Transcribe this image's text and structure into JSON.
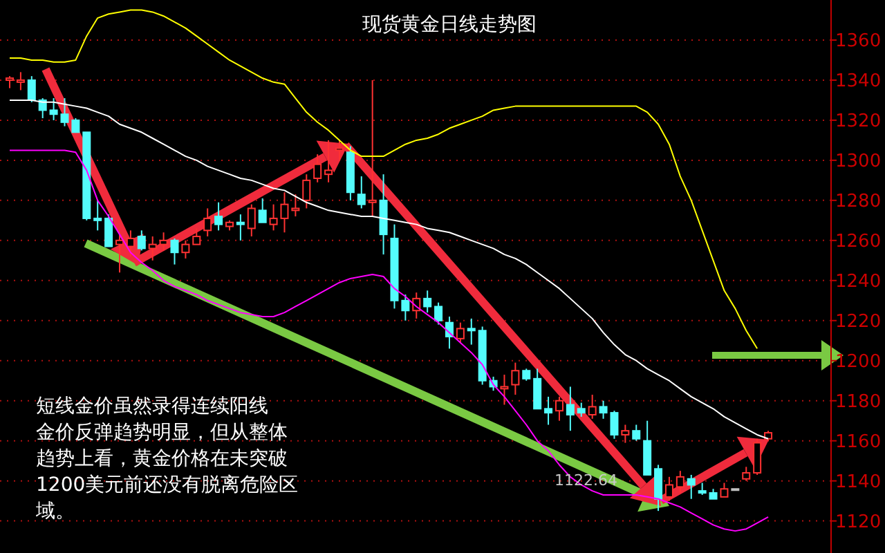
{
  "chart_data": {
    "type": "candlestick",
    "title": "现货黄金日线走势图",
    "annotations": [
      "1122.64",
      "短线金价虽然录得连续阳线",
      "金价反弹趋势明显，但从整体",
      "趋势上看，黄金价格在未突破",
      "1200美元前还没有脱离危险区",
      "域。"
    ],
    "categories": [
      null,
      null,
      null,
      null,
      null,
      null,
      null,
      null,
      null,
      null,
      null,
      null,
      null,
      null,
      null,
      null,
      null,
      null,
      null,
      null,
      null,
      null,
      null,
      null,
      null,
      null,
      null,
      null,
      null,
      null,
      null,
      null,
      null,
      null,
      null,
      null,
      null,
      null,
      null,
      null,
      null,
      null,
      null,
      null,
      null,
      null,
      null,
      null,
      null,
      null,
      null,
      null,
      null,
      null,
      null,
      null,
      null,
      null,
      null,
      null,
      null,
      null,
      null,
      null,
      null,
      null,
      null,
      null,
      null,
      null
    ],
    "ohlc": [
      [
        1340,
        1342,
        1336,
        1341
      ],
      [
        1339,
        1344,
        1335,
        1340
      ],
      [
        1340,
        1342,
        1329,
        1330
      ],
      [
        1330,
        1331,
        1321,
        1325
      ],
      [
        1325,
        1331,
        1320,
        1323
      ],
      [
        1323,
        1331,
        1317,
        1319
      ],
      [
        1320,
        1321,
        1314,
        1314
      ],
      [
        1314,
        1314,
        1270,
        1271
      ],
      [
        1271,
        1280,
        1265,
        1270
      ],
      [
        1271,
        1273,
        1257,
        1257
      ],
      [
        1258,
        1264,
        1244,
        1260
      ],
      [
        1257,
        1265,
        1252,
        1261
      ],
      [
        1262,
        1265,
        1255,
        1256
      ],
      [
        1256,
        1262,
        1250,
        1258
      ],
      [
        1258,
        1264,
        1255,
        1260
      ],
      [
        1260,
        1261,
        1248,
        1254
      ],
      [
        1254,
        1260,
        1251,
        1258
      ],
      [
        1258,
        1266,
        1258,
        1262
      ],
      [
        1265,
        1276,
        1262,
        1271
      ],
      [
        1272,
        1279,
        1265,
        1268
      ],
      [
        1267,
        1270,
        1265,
        1269
      ],
      [
        1269,
        1273,
        1260,
        1268
      ],
      [
        1266,
        1278,
        1262,
        1276
      ],
      [
        1275,
        1281,
        1269,
        1269
      ],
      [
        1268,
        1278,
        1265,
        1271
      ],
      [
        1271,
        1284,
        1264,
        1278
      ],
      [
        1275,
        1283,
        1272,
        1276
      ],
      [
        1280,
        1293,
        1276,
        1290
      ],
      [
        1291,
        1303,
        1289,
        1298
      ],
      [
        1293,
        1310,
        1289,
        1295
      ],
      [
        1305,
        1310,
        1300,
        1306
      ],
      [
        1304,
        1307,
        1280,
        1284
      ],
      [
        1283,
        1292,
        1276,
        1278
      ],
      [
        1279,
        1340,
        1272,
        1280
      ],
      [
        1280,
        1293,
        1253,
        1263
      ],
      [
        1261,
        1268,
        1226,
        1230
      ],
      [
        1230,
        1233,
        1220,
        1225
      ],
      [
        1225,
        1234,
        1221,
        1231
      ],
      [
        1231,
        1235,
        1224,
        1227
      ],
      [
        1227,
        1229,
        1218,
        1220
      ],
      [
        1219,
        1222,
        1206,
        1212
      ],
      [
        1211,
        1219,
        1209,
        1216
      ],
      [
        1216,
        1221,
        1208,
        1215
      ],
      [
        1215,
        1217,
        1188,
        1190
      ],
      [
        1190,
        1192,
        1185,
        1187
      ],
      [
        1186,
        1193,
        1178,
        1187
      ],
      [
        1188,
        1199,
        1183,
        1195
      ],
      [
        1195,
        1196,
        1190,
        1191
      ],
      [
        1191,
        1196,
        1176,
        1176
      ],
      [
        1176,
        1182,
        1168,
        1174
      ],
      [
        1175,
        1182,
        1170,
        1180
      ],
      [
        1178,
        1187,
        1165,
        1173
      ],
      [
        1176,
        1179,
        1172,
        1174
      ],
      [
        1173,
        1183,
        1171,
        1177
      ],
      [
        1177,
        1180,
        1171,
        1174
      ],
      [
        1174,
        1175,
        1161,
        1163
      ],
      [
        1163,
        1168,
        1159,
        1165
      ],
      [
        1165,
        1168,
        1160,
        1161
      ],
      [
        1160,
        1170,
        1143,
        1143
      ],
      [
        1146,
        1148,
        1125,
        1131
      ],
      [
        1132,
        1142,
        1130,
        1138
      ],
      [
        1137,
        1145,
        1134,
        1142
      ],
      [
        1141,
        1143,
        1131,
        1138
      ],
      [
        1135,
        1139,
        1133,
        1134
      ],
      [
        1134,
        1136,
        1131,
        1131
      ],
      [
        1132,
        1139,
        1132,
        1136
      ],
      [
        1136,
        1136,
        1136,
        1136
      ],
      [
        1141,
        1147,
        1140,
        1144
      ],
      [
        1144,
        1161,
        1143,
        1159
      ],
      [
        1161,
        1165,
        1160,
        1164
      ]
    ],
    "colors": [
      "#ff3232",
      "#ff3232",
      "#54fcfc",
      "#54fcfc",
      "#54fcfc",
      "#54fcfc",
      "#54fcfc",
      "#54fcfc",
      "#54fcfc",
      "#54fcfc",
      "#ff3232",
      "#ff3232",
      "#54fcfc",
      "#ff3232",
      "#ff3232",
      "#54fcfc",
      "#ff3232",
      "#ff3232",
      "#ff3232",
      "#54fcfc",
      "#ff3232",
      "#54fcfc",
      "#ff3232",
      "#54fcfc",
      "#ff3232",
      "#ff3232",
      "#ff3232",
      "#ff3232",
      "#ff3232",
      "#ff3232",
      "#ff3232",
      "#54fcfc",
      "#54fcfc",
      "#ff3232",
      "#54fcfc",
      "#54fcfc",
      "#54fcfc",
      "#ff3232",
      "#54fcfc",
      "#54fcfc",
      "#54fcfc",
      "#ff3232",
      "#54fcfc",
      "#54fcfc",
      "#54fcfc",
      "#ff3232",
      "#ff3232",
      "#54fcfc",
      "#54fcfc",
      "#54fcfc",
      "#ff3232",
      "#54fcfc",
      "#54fcfc",
      "#ff3232",
      "#54fcfc",
      "#54fcfc",
      "#ff3232",
      "#54fcfc",
      "#54fcfc",
      "#54fcfc",
      "#ff3232",
      "#ff3232",
      "#54fcfc",
      "#54fcfc",
      "#54fcfc",
      "#ff3232",
      "#c0c0c0",
      "#ff3232",
      "#ff3232",
      "#ff3232"
    ],
    "series": [
      {
        "type": "line",
        "color": "#ffff00",
        "values": [
          1351,
          1351,
          1350,
          1350,
          1349,
          1349,
          1350,
          1362,
          1371,
          1373,
          1374,
          1375,
          1375,
          1374,
          1372,
          1369,
          1366,
          1362,
          1358,
          1354,
          1350,
          1347,
          1344,
          1341,
          1339,
          1338,
          1331,
          1324,
          1319,
          1315,
          1310,
          1305,
          1302,
          1302,
          1302,
          1305,
          1308,
          1310,
          1311,
          1313,
          1316,
          1318,
          1320,
          1322,
          1325,
          1326,
          1327,
          1327,
          1327,
          1327,
          1327,
          1327,
          1327,
          1327,
          1327,
          1327,
          1327,
          1327,
          1324,
          1318,
          1308,
          1292,
          1280,
          1265,
          1250,
          1235,
          1226,
          1215,
          1206,
          null
        ]
      },
      {
        "type": "line",
        "color": "#ffffff",
        "values": [
          1330,
          1330,
          1330,
          1329,
          1329,
          1328,
          1327,
          1326,
          1324,
          1322,
          1318,
          1316,
          1314,
          1311,
          1308,
          1305,
          1302,
          1300,
          1297,
          1295,
          1293,
          1291,
          1290,
          1288,
          1286,
          1285,
          1282,
          1279,
          1277,
          1275,
          1274,
          1273,
          1272,
          1272,
          1271,
          1270,
          1269,
          1268,
          1266,
          1265,
          1264,
          1262,
          1260,
          1258,
          1256,
          1253,
          1251,
          1248,
          1244,
          1240,
          1236,
          1231,
          1226,
          1221,
          1214,
          1208,
          1203,
          1200,
          1196,
          1193,
          1190,
          1186,
          1182,
          1179,
          1176,
          1172,
          1169,
          1166,
          1163,
          1161
        ]
      },
      {
        "type": "line",
        "color": "#ff00ff",
        "values": [
          1305,
          1305,
          1305,
          1305,
          1305,
          1305,
          1304,
          1295,
          1280,
          1272,
          1263,
          1254,
          1249,
          1245,
          1240,
          1237,
          1235,
          1233,
          1230,
          1228,
          1226,
          1224,
          1223,
          1222,
          1222,
          1224,
          1227,
          1230,
          1233,
          1236,
          1239,
          1241,
          1242,
          1243,
          1242,
          1236,
          1232,
          1227,
          1223,
          1219,
          1214,
          1209,
          1204,
          1198,
          1188,
          1182,
          1175,
          1168,
          1160,
          1155,
          1148,
          1142,
          1138,
          1135,
          1133,
          1133,
          1133,
          1133,
          1132,
          1131,
          1129,
          1127,
          1124,
          1121,
          1118,
          1116,
          1115,
          1116,
          1119,
          1122
        ]
      }
    ],
    "ylim": [
      1104,
      1380
    ],
    "yticks": [
      1120,
      1140,
      1160,
      1180,
      1200,
      1220,
      1240,
      1260,
      1280,
      1300,
      1320,
      1340,
      1360
    ],
    "grid": "y",
    "tick_labels": "y"
  }
}
